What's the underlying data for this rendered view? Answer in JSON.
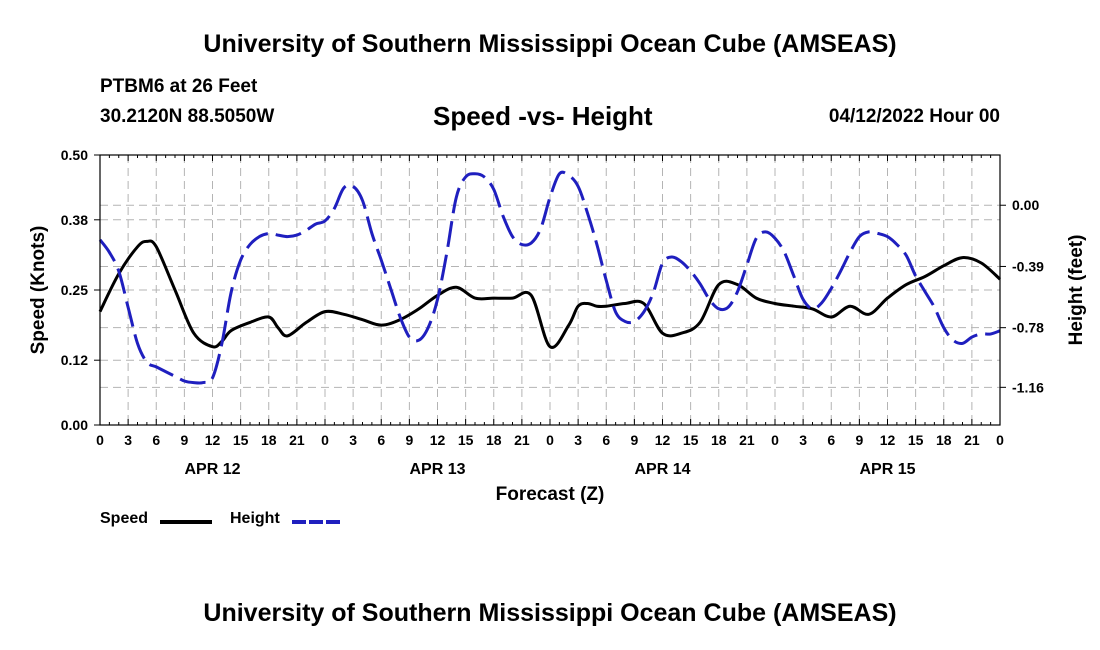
{
  "header": {
    "title": "University of Southern Mississippi Ocean Cube (AMSEAS)",
    "station": "PTBM6 at 26 Feet",
    "coords": "30.2120N  88.5050W",
    "subtitle": "Speed -vs- Height",
    "datetime": "04/12/2022 Hour 00"
  },
  "footer": {
    "title": "University of Southern Mississippi Ocean Cube (AMSEAS)"
  },
  "legend": {
    "items": [
      {
        "label": "Speed",
        "color": "#000000",
        "style": "solid"
      },
      {
        "label": "Height",
        "color": "#1f1fbf",
        "style": "dashed"
      }
    ]
  },
  "chart_data": {
    "type": "line",
    "xlabel": "Forecast (Z)",
    "ylabel": "Speed (Knots)",
    "y2label": "Height (feet)",
    "xlim": [
      0,
      96
    ],
    "ylim": [
      0,
      0.5
    ],
    "y2lim": [
      -1.4,
      0.32
    ],
    "x_ticks": [
      0,
      3,
      6,
      9,
      12,
      15,
      18,
      21,
      24,
      27,
      30,
      33,
      36,
      39,
      42,
      45,
      48,
      51,
      54,
      57,
      60,
      63,
      66,
      69,
      72,
      75,
      78,
      81,
      84,
      87,
      90,
      93,
      96
    ],
    "x_tick_labels": [
      "0",
      "3",
      "6",
      "9",
      "12",
      "15",
      "18",
      "21",
      "0",
      "3",
      "6",
      "9",
      "12",
      "15",
      "18",
      "21",
      "0",
      "3",
      "6",
      "9",
      "12",
      "15",
      "18",
      "21",
      "0",
      "3",
      "6",
      "9",
      "12",
      "15",
      "18",
      "21",
      "0"
    ],
    "date_labels": [
      {
        "x": 12,
        "label": "APR 12"
      },
      {
        "x": 36,
        "label": "APR 13"
      },
      {
        "x": 60,
        "label": "APR 14"
      },
      {
        "x": 84,
        "label": "APR 15"
      }
    ],
    "y_ticks": [
      0.0,
      0.12,
      0.25,
      0.38,
      0.5
    ],
    "y_tick_labels": [
      "0.00",
      "0.12",
      "0.25",
      "0.38",
      "0.50"
    ],
    "y2_ticks": [
      0.0,
      -0.39,
      -0.78,
      -1.16
    ],
    "y2_tick_labels": [
      "0.00",
      "-0.39",
      "-0.78",
      "-1.16"
    ],
    "grid": true,
    "series": [
      {
        "name": "Speed",
        "axis": "left",
        "x": [
          0,
          2,
          4,
          5,
          6,
          8,
          10,
          12,
          13,
          14,
          16,
          18,
          19,
          20,
          22,
          24,
          26,
          28,
          30,
          32,
          34,
          36,
          38,
          40,
          42,
          44,
          46,
          48,
          50,
          51,
          52,
          53,
          54,
          56,
          58,
          60,
          62,
          64,
          66,
          68,
          70,
          72,
          74,
          76,
          78,
          80,
          82,
          84,
          86,
          88,
          90,
          92,
          94,
          96
        ],
        "values": [
          0.21,
          0.28,
          0.33,
          0.34,
          0.33,
          0.25,
          0.17,
          0.145,
          0.155,
          0.175,
          0.19,
          0.2,
          0.18,
          0.165,
          0.19,
          0.21,
          0.205,
          0.195,
          0.185,
          0.195,
          0.215,
          0.24,
          0.255,
          0.235,
          0.235,
          0.235,
          0.24,
          0.145,
          0.185,
          0.22,
          0.225,
          0.22,
          0.22,
          0.225,
          0.225,
          0.17,
          0.17,
          0.19,
          0.26,
          0.26,
          0.235,
          0.225,
          0.22,
          0.215,
          0.2,
          0.22,
          0.205,
          0.235,
          0.26,
          0.275,
          0.295,
          0.31,
          0.3,
          0.27
        ]
      },
      {
        "name": "Height",
        "axis": "right",
        "x": [
          0,
          1,
          2,
          3,
          4,
          5,
          6,
          7,
          8,
          9,
          10,
          11,
          12,
          13,
          14,
          15,
          16,
          17,
          18,
          19,
          20,
          21,
          22,
          23,
          24,
          25,
          26,
          27,
          28,
          29,
          30,
          31,
          32,
          33,
          34,
          35,
          36,
          37,
          38,
          39,
          40,
          41,
          42,
          43,
          44,
          45,
          46,
          47,
          48,
          49,
          50,
          51,
          52,
          53,
          54,
          55,
          56,
          57,
          58,
          59,
          60,
          61,
          62,
          63,
          64,
          65,
          66,
          67,
          68,
          69,
          70,
          71,
          72,
          73,
          74,
          75,
          76,
          77,
          78,
          79,
          80,
          81,
          82,
          83,
          84,
          85,
          86,
          87,
          88,
          89,
          90,
          91,
          92,
          93,
          94,
          95,
          96
        ],
        "values": [
          -0.22,
          -0.3,
          -0.42,
          -0.65,
          -0.88,
          -1.0,
          -1.03,
          -1.06,
          -1.09,
          -1.12,
          -1.13,
          -1.13,
          -1.1,
          -0.88,
          -0.55,
          -0.35,
          -0.25,
          -0.2,
          -0.18,
          -0.19,
          -0.2,
          -0.19,
          -0.16,
          -0.12,
          -0.1,
          -0.02,
          0.11,
          0.12,
          0.03,
          -0.18,
          -0.35,
          -0.53,
          -0.71,
          -0.84,
          -0.86,
          -0.78,
          -0.6,
          -0.3,
          0.05,
          0.18,
          0.2,
          0.18,
          0.1,
          -0.07,
          -0.2,
          -0.25,
          -0.24,
          -0.15,
          0.05,
          0.2,
          0.19,
          0.12,
          -0.05,
          -0.25,
          -0.48,
          -0.68,
          -0.74,
          -0.74,
          -0.68,
          -0.56,
          -0.37,
          -0.33,
          -0.36,
          -0.42,
          -0.5,
          -0.6,
          -0.66,
          -0.65,
          -0.55,
          -0.38,
          -0.21,
          -0.17,
          -0.21,
          -0.3,
          -0.45,
          -0.6,
          -0.66,
          -0.62,
          -0.53,
          -0.42,
          -0.3,
          -0.2,
          -0.17,
          -0.18,
          -0.2,
          -0.25,
          -0.32,
          -0.45,
          -0.55,
          -0.65,
          -0.78,
          -0.86,
          -0.88,
          -0.84,
          -0.82,
          -0.82,
          -0.8
        ]
      }
    ]
  }
}
